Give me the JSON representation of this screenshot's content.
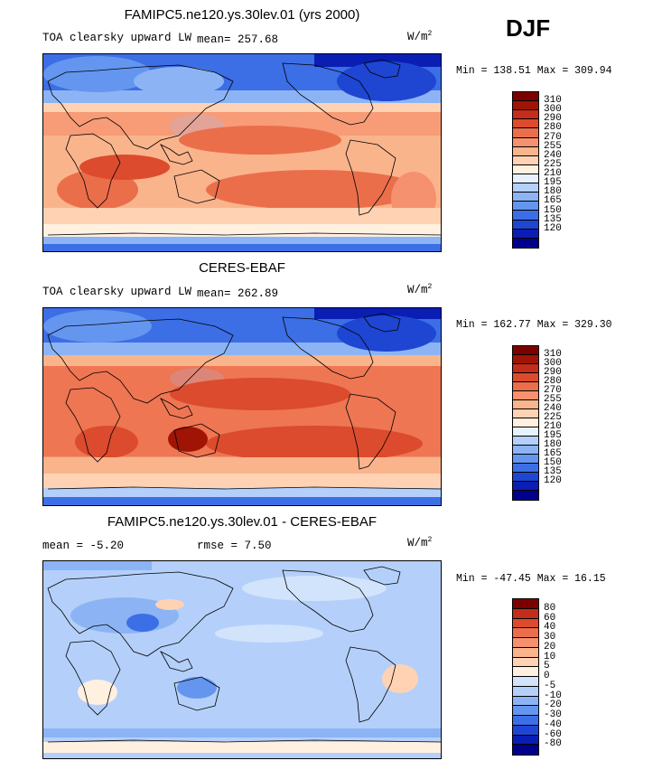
{
  "season": "DJF",
  "colors": {
    "abs_scale": [
      "#00008c",
      "#0a1eb4",
      "#1e46d2",
      "#3c6ee6",
      "#6496f0",
      "#8cb4f5",
      "#b4d0fa",
      "#e6f0ff",
      "#fff0e0",
      "#ffd2b4",
      "#fab48c",
      "#f5916e",
      "#eb6e4b",
      "#dc4b2d",
      "#c32d19",
      "#a01405",
      "#7d0000"
    ],
    "diff_scale": [
      "#00008c",
      "#0a1eb4",
      "#1e46d2",
      "#3c6ee6",
      "#6496f0",
      "#8cb4f5",
      "#b4d0fa",
      "#d2e4fc",
      "#fff0e0",
      "#ffd2b4",
      "#fab48c",
      "#f5916e",
      "#eb6e4b",
      "#dc4b2d",
      "#c32d19",
      "#7d0000"
    ]
  },
  "panels": [
    {
      "title": "FAMIPC5.ne120.ys.30lev.01 (yrs 2000)",
      "variable": "TOA clearsky upward LW",
      "mean_label": "mean=",
      "mean_value": "257.68",
      "units_base": "W/m",
      "units_exp": "2",
      "minmax": "Min = 138.51 Max = 309.94",
      "colorbar_labels": [
        "310",
        "300",
        "290",
        "280",
        "270",
        "255",
        "240",
        "225",
        "210",
        "195",
        "180",
        "165",
        "150",
        "135",
        "120"
      ]
    },
    {
      "title": "CERES-EBAF",
      "variable": "TOA clearsky upward LW",
      "mean_label": "mean=",
      "mean_value": "262.89",
      "units_base": "W/m",
      "units_exp": "2",
      "minmax": "Min = 162.77 Max = 329.30",
      "colorbar_labels": [
        "310",
        "300",
        "290",
        "280",
        "270",
        "255",
        "240",
        "225",
        "210",
        "195",
        "180",
        "165",
        "150",
        "135",
        "120"
      ]
    },
    {
      "title": "FAMIPC5.ne120.ys.30lev.01 - CERES-EBAF",
      "mean_text": "mean =   -5.20",
      "rmse_text": "rmse =    7.50",
      "units_base": "W/m",
      "units_exp": "2",
      "minmax": "Min = -47.45 Max =  16.15",
      "colorbar_labels": [
        "80",
        "60",
        "40",
        "30",
        "20",
        "10",
        "5",
        "0",
        "-5",
        "-10",
        "-20",
        "-30",
        "-40",
        "-60",
        "-80"
      ]
    }
  ],
  "chart_data": [
    {
      "type": "heatmap",
      "title": "FAMIPC5.ne120.ys.30lev.01 (yrs 2000)",
      "subtitle": "TOA clearsky upward LW",
      "units": "W/m2",
      "season": "DJF",
      "mean": 257.68,
      "min": 138.51,
      "max": 309.94,
      "contour_levels": [
        120,
        135,
        150,
        165,
        180,
        195,
        210,
        225,
        240,
        255,
        270,
        280,
        290,
        300,
        310
      ]
    },
    {
      "type": "heatmap",
      "title": "CERES-EBAF",
      "subtitle": "TOA clearsky upward LW",
      "units": "W/m2",
      "season": "DJF",
      "mean": 262.89,
      "min": 162.77,
      "max": 329.3,
      "contour_levels": [
        120,
        135,
        150,
        165,
        180,
        195,
        210,
        225,
        240,
        255,
        270,
        280,
        290,
        300,
        310
      ]
    },
    {
      "type": "heatmap",
      "title": "FAMIPC5.ne120.ys.30lev.01 - CERES-EBAF",
      "units": "W/m2",
      "season": "DJF",
      "mean": -5.2,
      "rmse": 7.5,
      "min": -47.45,
      "max": 16.15,
      "contour_levels": [
        -80,
        -60,
        -40,
        -30,
        -20,
        -10,
        -5,
        0,
        5,
        10,
        20,
        30,
        40,
        60,
        80
      ]
    }
  ]
}
